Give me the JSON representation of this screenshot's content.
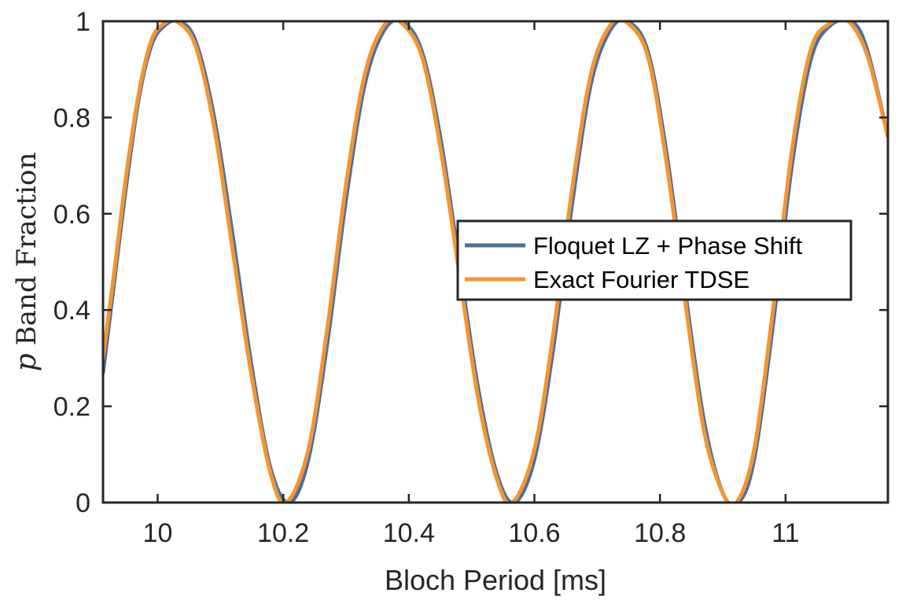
{
  "chart_data": {
    "type": "line",
    "title": "",
    "xlabel": "Bloch Period [ms]",
    "ylabel_symbol": "p",
    "ylabel_text": "Band Fraction",
    "xlim": [
      9.913,
      11.163
    ],
    "ylim": [
      0,
      1
    ],
    "xticks": [
      10,
      10.2,
      10.4,
      10.6,
      10.8,
      11
    ],
    "xtick_labels": [
      "10",
      "10.2",
      "10.4",
      "10.6",
      "10.8",
      "11"
    ],
    "yticks": [
      0,
      0.2,
      0.4,
      0.6,
      0.8,
      1
    ],
    "ytick_labels": [
      "0",
      "0.2",
      "0.4",
      "0.6",
      "0.8",
      "1"
    ],
    "grid": false,
    "legend_position": "center-right",
    "series": [
      {
        "name": "Floquet LZ + Phase Shift",
        "color": "#4a6fa0",
        "x": [
          9.913,
          9.93,
          9.95,
          9.97,
          9.99,
          10.01,
          10.033,
          10.06,
          10.09,
          10.12,
          10.15,
          10.18,
          10.21,
          10.24,
          10.27,
          10.3,
          10.33,
          10.36,
          10.388,
          10.42,
          10.45,
          10.48,
          10.51,
          10.54,
          10.568,
          10.6,
          10.63,
          10.66,
          10.69,
          10.72,
          10.747,
          10.78,
          10.81,
          10.84,
          10.87,
          10.9,
          10.925,
          10.95,
          10.98,
          11.01,
          11.04,
          11.07,
          11.105,
          11.13,
          11.163
        ],
        "values": [
          0.27,
          0.45,
          0.66,
          0.84,
          0.95,
          0.99,
          1.0,
          0.96,
          0.8,
          0.55,
          0.28,
          0.07,
          0.0,
          0.09,
          0.33,
          0.63,
          0.87,
          0.98,
          1.0,
          0.94,
          0.76,
          0.5,
          0.24,
          0.06,
          0.0,
          0.09,
          0.32,
          0.62,
          0.87,
          0.98,
          1.0,
          0.94,
          0.73,
          0.44,
          0.17,
          0.02,
          0.0,
          0.09,
          0.37,
          0.7,
          0.92,
          0.99,
          1.0,
          0.94,
          0.76
        ]
      },
      {
        "name": "Exact Fourier TDSE",
        "color": "#f39530",
        "x": [
          9.913,
          9.93,
          9.95,
          9.97,
          9.99,
          10.01,
          10.03,
          10.06,
          10.09,
          10.12,
          10.15,
          10.18,
          10.205,
          10.24,
          10.27,
          10.3,
          10.33,
          10.36,
          10.385,
          10.42,
          10.45,
          10.48,
          10.51,
          10.54,
          10.565,
          10.6,
          10.63,
          10.66,
          10.69,
          10.72,
          10.745,
          10.78,
          10.81,
          10.84,
          10.87,
          10.9,
          10.922,
          10.95,
          10.98,
          11.01,
          11.04,
          11.07,
          11.1,
          11.13,
          11.163
        ],
        "values": [
          0.3,
          0.47,
          0.68,
          0.85,
          0.96,
          0.995,
          1.0,
          0.95,
          0.78,
          0.52,
          0.26,
          0.06,
          0.0,
          0.11,
          0.36,
          0.66,
          0.89,
          0.99,
          1.0,
          0.93,
          0.74,
          0.48,
          0.22,
          0.05,
          0.0,
          0.11,
          0.35,
          0.65,
          0.89,
          0.99,
          1.0,
          0.93,
          0.71,
          0.42,
          0.15,
          0.02,
          0.0,
          0.11,
          0.4,
          0.73,
          0.94,
          0.995,
          1.0,
          0.93,
          0.76
        ]
      }
    ]
  }
}
